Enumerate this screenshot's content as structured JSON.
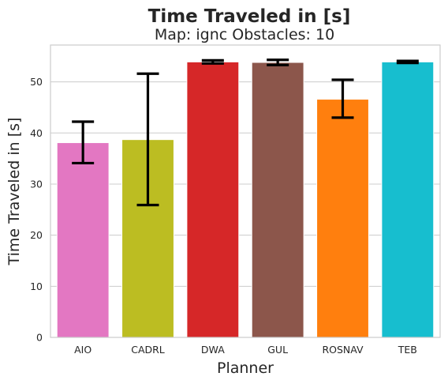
{
  "chart_data": {
    "type": "bar",
    "title": "Time Traveled in [s]",
    "subtitle": "Map: ignc Obstacles: 10",
    "xlabel": "Planner",
    "ylabel": "Time Traveled in [s]",
    "categories": [
      "AIO",
      "CADRL",
      "DWA",
      "GUL",
      "ROSNAV",
      "TEB"
    ],
    "values": [
      38.1,
      38.7,
      53.9,
      53.8,
      46.6,
      53.9
    ],
    "error_low": [
      34.1,
      25.9,
      53.6,
      53.3,
      43.0,
      53.7
    ],
    "error_high": [
      42.2,
      51.6,
      54.2,
      54.3,
      50.4,
      54.1
    ],
    "colors": [
      "#e377c2",
      "#bcbd22",
      "#d62728",
      "#8c564b",
      "#ff7f0e",
      "#17becf"
    ],
    "ylim": [
      0,
      57.2
    ],
    "yticks": [
      0,
      10,
      20,
      30,
      40,
      50
    ],
    "grid": true,
    "legend": "none"
  }
}
